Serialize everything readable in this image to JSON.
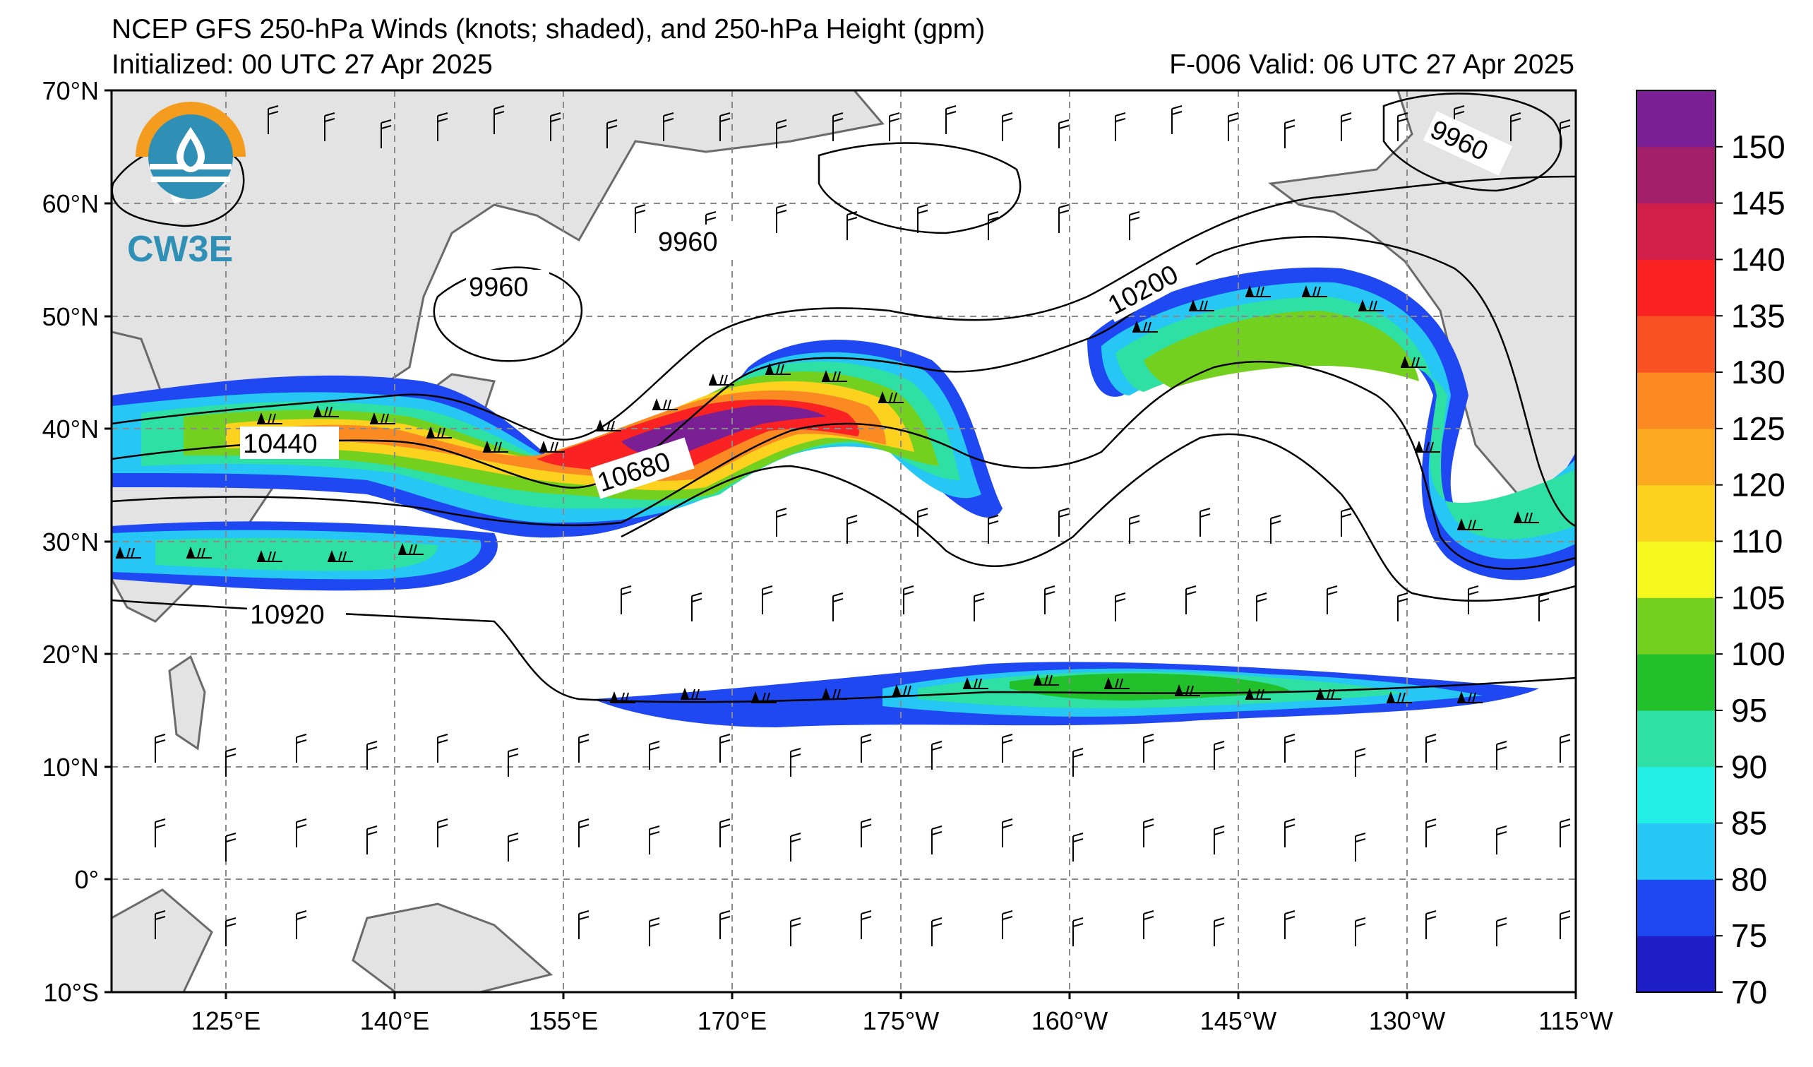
{
  "header": {
    "title": "NCEP GFS 250-hPa Winds (knots; shaded), and 250-hPa Height (gpm)",
    "initialized": "Initialized: 00 UTC 27 Apr 2025",
    "valid": "F-006  Valid: 06 UTC 27 Apr 2025"
  },
  "logo": {
    "text": "CW3E",
    "icon": "cw3e-logo-icon",
    "colors": [
      "#f39c1e",
      "#2f8fb5",
      "#ffffff"
    ]
  },
  "map": {
    "lat_labels": [
      "70°N",
      "60°N",
      "50°N",
      "40°N",
      "30°N",
      "20°N",
      "10°N",
      "0°",
      "10°S"
    ],
    "lon_labels": [
      "125°E",
      "140°E",
      "155°E",
      "170°E",
      "175°W",
      "160°W",
      "145°W",
      "130°W",
      "115°W"
    ],
    "extent": {
      "lon_west": "110°E",
      "lon_east": "115°W",
      "lat_south": "10°S",
      "lat_north": "70°N"
    },
    "grid": "dashed",
    "contour_labels": [
      {
        "label": "9960",
        "id": "ct-9960-a"
      },
      {
        "label": "9960",
        "id": "ct-9960-b"
      },
      {
        "label": "9960",
        "id": "ct-9960-c"
      },
      {
        "label": "9960",
        "id": "ct-9960-d"
      },
      {
        "label": "10200",
        "id": "ct-10200"
      },
      {
        "label": "10440",
        "id": "ct-10440"
      },
      {
        "label": "10680",
        "id": "ct-10680"
      },
      {
        "label": "10920",
        "id": "ct-10920"
      }
    ],
    "land_color": "#e3e3e3",
    "coast_color": "#6a6a6a"
  },
  "colorbar": {
    "ticks": [
      "150",
      "145",
      "140",
      "135",
      "130",
      "125",
      "120",
      "110",
      "105",
      "100",
      "95",
      "90",
      "85",
      "80",
      "75",
      "70"
    ],
    "bins": [
      {
        "from": 70,
        "to": 75,
        "color": "#1f1fc8"
      },
      {
        "from": 75,
        "to": 80,
        "color": "#1f47f2"
      },
      {
        "from": 80,
        "to": 85,
        "color": "#26c6f5"
      },
      {
        "from": 85,
        "to": 90,
        "color": "#22f0e6"
      },
      {
        "from": 90,
        "to": 95,
        "color": "#2ee0a4"
      },
      {
        "from": 95,
        "to": 100,
        "color": "#22c02a"
      },
      {
        "from": 100,
        "to": 105,
        "color": "#74d01e"
      },
      {
        "from": 105,
        "to": 110,
        "color": "#f6f71e"
      },
      {
        "from": 110,
        "to": 120,
        "color": "#fcd21e"
      },
      {
        "from": 120,
        "to": 125,
        "color": "#fbaa20"
      },
      {
        "from": 125,
        "to": 130,
        "color": "#fb8a22"
      },
      {
        "from": 130,
        "to": 135,
        "color": "#fa5222"
      },
      {
        "from": 135,
        "to": 140,
        "color": "#fa2222"
      },
      {
        "from": 140,
        "to": 145,
        "color": "#d11f4a"
      },
      {
        "from": 145,
        "to": 150,
        "color": "#a41f6a"
      },
      {
        "from": 150,
        "to": 155,
        "color": "#7a1f94"
      }
    ]
  }
}
